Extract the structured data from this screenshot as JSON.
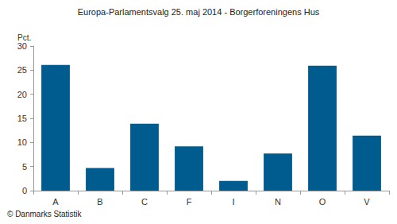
{
  "chart_data": {
    "type": "bar",
    "title": "Europa-Parlamentsvalg 25. maj 2014 - Borgerforeningens Hus",
    "y_label": "Pct.",
    "source": "© Danmarks Statistik",
    "categories": [
      "A",
      "B",
      "C",
      "F",
      "I",
      "N",
      "O",
      "V"
    ],
    "values": [
      26.1,
      4.7,
      13.9,
      9.2,
      2.0,
      7.7,
      25.9,
      11.4
    ],
    "color": "#005b8e",
    "ylim": [
      0,
      30
    ],
    "yticks": [
      0,
      5,
      10,
      15,
      20,
      25,
      30
    ],
    "grid": false
  }
}
